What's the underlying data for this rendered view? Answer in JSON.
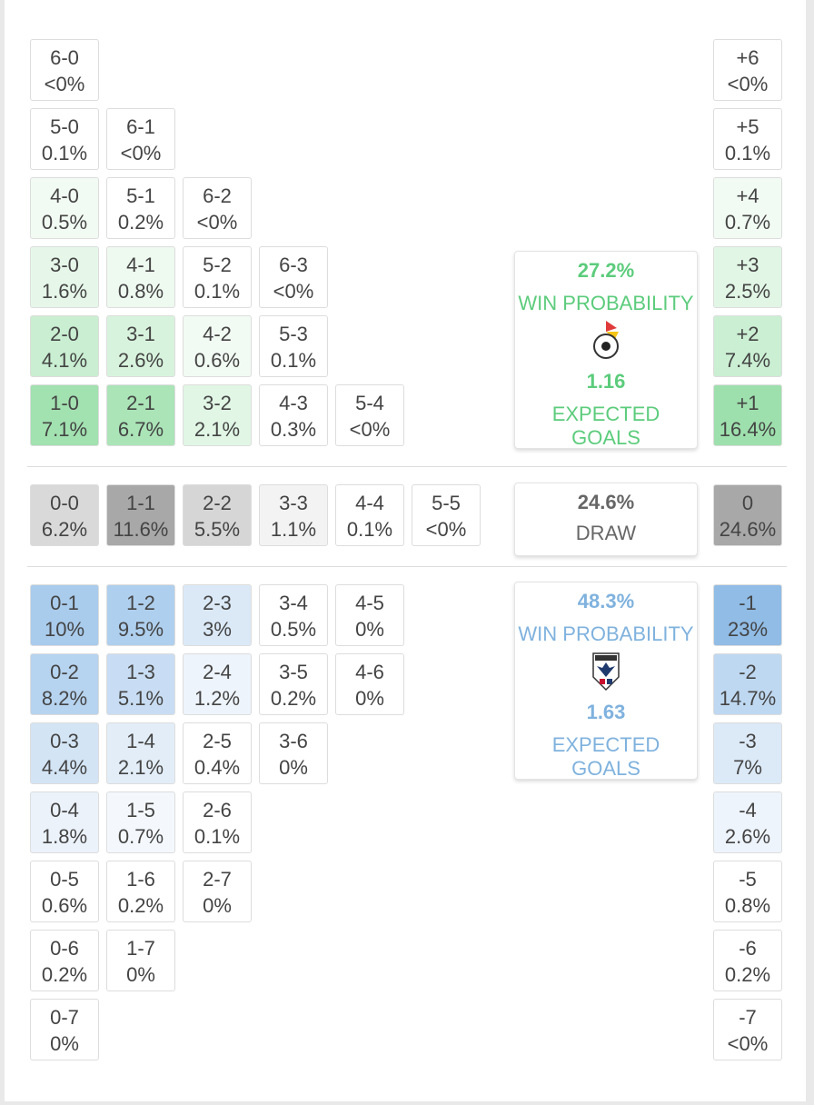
{
  "home": {
    "rows": [
      [
        {
          "score": "6-0",
          "prob": "<0%"
        }
      ],
      [
        {
          "score": "5-0",
          "prob": "0.1%"
        },
        {
          "score": "6-1",
          "prob": "<0%"
        }
      ],
      [
        {
          "score": "4-0",
          "prob": "0.5%",
          "bg": "#f2fbf3"
        },
        {
          "score": "5-1",
          "prob": "0.2%"
        },
        {
          "score": "6-2",
          "prob": "<0%"
        }
      ],
      [
        {
          "score": "3-0",
          "prob": "1.6%",
          "bg": "#e6f7e9"
        },
        {
          "score": "4-1",
          "prob": "0.8%",
          "bg": "#eef9f0"
        },
        {
          "score": "5-2",
          "prob": "0.1%"
        },
        {
          "score": "6-3",
          "prob": "<0%"
        }
      ],
      [
        {
          "score": "2-0",
          "prob": "4.1%",
          "bg": "#c9eed1"
        },
        {
          "score": "3-1",
          "prob": "2.6%",
          "bg": "#d8f3dd"
        },
        {
          "score": "4-2",
          "prob": "0.6%",
          "bg": "#f2fbf3"
        },
        {
          "score": "5-3",
          "prob": "0.1%"
        }
      ],
      [
        {
          "score": "1-0",
          "prob": "7.1%",
          "bg": "#a2e1b0"
        },
        {
          "score": "2-1",
          "prob": "6.7%",
          "bg": "#aae4b7"
        },
        {
          "score": "3-2",
          "prob": "2.1%",
          "bg": "#e1f6e5"
        },
        {
          "score": "4-3",
          "prob": "0.3%"
        },
        {
          "score": "5-4",
          "prob": "<0%"
        }
      ]
    ],
    "margins": [
      {
        "score": "+6",
        "prob": "<0%"
      },
      {
        "score": "+5",
        "prob": "0.1%"
      },
      {
        "score": "+4",
        "prob": "0.7%",
        "bg": "#f2fbf3"
      },
      {
        "score": "+3",
        "prob": "2.5%",
        "bg": "#e1f6e5"
      },
      {
        "score": "+2",
        "prob": "7.4%",
        "bg": "#cbefd3"
      },
      {
        "score": "+1",
        "prob": "16.4%",
        "bg": "#9ee0ad"
      }
    ],
    "summary": {
      "probability": "27.2%",
      "label": "WIN PROBABILITY",
      "xg": "1.16",
      "xg_label": "EXPECTED GOALS",
      "color": "#5ccc7c"
    }
  },
  "draw": {
    "cells": [
      {
        "score": "0-0",
        "prob": "6.2%",
        "bg": "#d9d9d9"
      },
      {
        "score": "1-1",
        "prob": "11.6%",
        "bg": "#a8a8a8"
      },
      {
        "score": "2-2",
        "prob": "5.5%",
        "bg": "#d6d6d6"
      },
      {
        "score": "3-3",
        "prob": "1.1%",
        "bg": "#f3f3f3"
      },
      {
        "score": "4-4",
        "prob": "0.1%"
      },
      {
        "score": "5-5",
        "prob": "<0%"
      }
    ],
    "margin": {
      "score": "0",
      "prob": "24.6%",
      "bg": "#a8a8a8"
    },
    "summary": {
      "probability": "24.6%",
      "label": "DRAW",
      "color": "#666666"
    }
  },
  "away": {
    "rows": [
      [
        {
          "score": "0-1",
          "prob": "10%",
          "bg": "#a9cbec"
        },
        {
          "score": "1-2",
          "prob": "9.5%",
          "bg": "#afcfee"
        },
        {
          "score": "2-3",
          "prob": "3%",
          "bg": "#dbe9f7"
        },
        {
          "score": "3-4",
          "prob": "0.5%"
        },
        {
          "score": "4-5",
          "prob": "0%"
        }
      ],
      [
        {
          "score": "0-2",
          "prob": "8.2%",
          "bg": "#b6d3ef"
        },
        {
          "score": "1-3",
          "prob": "5.1%",
          "bg": "#c8ddf3"
        },
        {
          "score": "2-4",
          "prob": "1.2%",
          "bg": "#eef4fb"
        },
        {
          "score": "3-5",
          "prob": "0.2%"
        },
        {
          "score": "4-6",
          "prob": "0%"
        }
      ],
      [
        {
          "score": "0-3",
          "prob": "4.4%",
          "bg": "#d3e4f5"
        },
        {
          "score": "1-4",
          "prob": "2.1%",
          "bg": "#e2edf8"
        },
        {
          "score": "2-5",
          "prob": "0.4%"
        },
        {
          "score": "3-6",
          "prob": "0%"
        }
      ],
      [
        {
          "score": "0-4",
          "prob": "1.8%",
          "bg": "#ebf2fa"
        },
        {
          "score": "1-5",
          "prob": "0.7%",
          "bg": "#f4f8fc"
        },
        {
          "score": "2-6",
          "prob": "0.1%"
        }
      ],
      [
        {
          "score": "0-5",
          "prob": "0.6%"
        },
        {
          "score": "1-6",
          "prob": "0.2%"
        },
        {
          "score": "2-7",
          "prob": "0%"
        }
      ],
      [
        {
          "score": "0-6",
          "prob": "0.2%"
        },
        {
          "score": "1-7",
          "prob": "0%"
        }
      ],
      [
        {
          "score": "0-7",
          "prob": "0%"
        }
      ]
    ],
    "margins": [
      {
        "score": "-1",
        "prob": "23%",
        "bg": "#90bce6"
      },
      {
        "score": "-2",
        "prob": "14.7%",
        "bg": "#bfd8f1"
      },
      {
        "score": "-3",
        "prob": "7%",
        "bg": "#dce9f7"
      },
      {
        "score": "-4",
        "prob": "2.6%",
        "bg": "#eef4fb"
      },
      {
        "score": "-5",
        "prob": "0.8%"
      },
      {
        "score": "-6",
        "prob": "0.2%"
      },
      {
        "score": "-7",
        "prob": "<0%"
      }
    ],
    "summary": {
      "probability": "48.3%",
      "label": "WIN PROBABILITY",
      "xg": "1.63",
      "xg_label": "EXPECTED GOALS",
      "color": "#7fb2de"
    }
  }
}
